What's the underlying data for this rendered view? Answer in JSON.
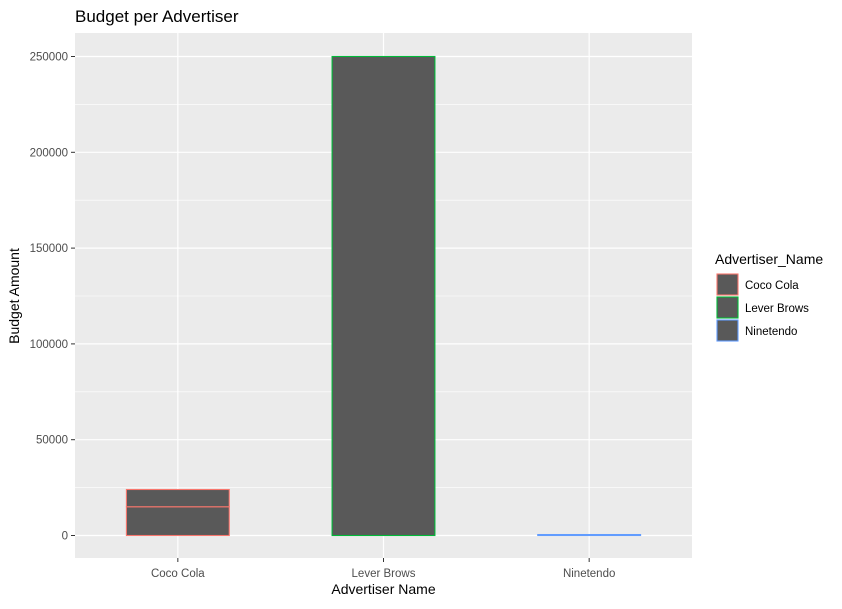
{
  "chart_data": {
    "type": "bar",
    "title": "Budget per Advertiser",
    "xlabel": "Advertiser Name",
    "ylabel": "Budget Amount",
    "categories": [
      "Coco Cola",
      "Lever Brows",
      "Ninetendo"
    ],
    "segments": [
      {
        "category": "Coco Cola",
        "values": [
          15000,
          9000
        ]
      },
      {
        "category": "Lever Brows",
        "values": [
          250000
        ]
      },
      {
        "category": "Ninetendo",
        "values": [
          500
        ]
      }
    ],
    "totals": [
      24000,
      250000,
      500
    ],
    "ylim": [
      0,
      262000
    ],
    "yticks": [
      0,
      50000,
      100000,
      150000,
      200000,
      250000
    ],
    "ytick_labels": [
      "0",
      "50000",
      "100000",
      "150000",
      "200000",
      "250000"
    ],
    "grid": true,
    "legend": {
      "title": "Advertiser_Name",
      "placement": "right",
      "entries": [
        "Coco Cola",
        "Lever Brows",
        "Ninetendo"
      ]
    },
    "colors": {
      "fill": "#595959",
      "panel": "#ebebeb",
      "grid": "#ffffff",
      "outline": [
        "#f8766d",
        "#00ba38",
        "#619cff"
      ]
    }
  }
}
